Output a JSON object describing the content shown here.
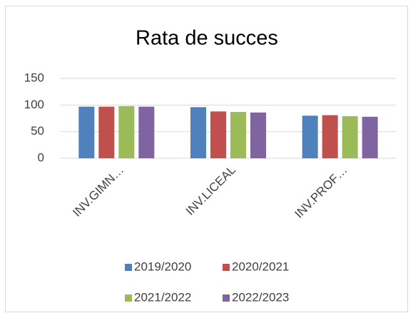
{
  "chart_data": {
    "type": "bar",
    "title": "Rata de succes",
    "categories": [
      "INV.GIMN…",
      "INV.LICEAL",
      "INV.PROF…"
    ],
    "series": [
      {
        "name": "2019/2020",
        "color": "#4f81bd",
        "values": [
          97,
          96,
          80
        ]
      },
      {
        "name": "2020/2021",
        "color": "#c0504d",
        "values": [
          97,
          88,
          81
        ]
      },
      {
        "name": "2021/2022",
        "color": "#9bbb59",
        "values": [
          98,
          87,
          79
        ]
      },
      {
        "name": "2022/2023",
        "color": "#8064a2",
        "values": [
          97,
          86,
          78
        ]
      }
    ],
    "ylim": [
      0,
      150
    ],
    "yticks": [
      0,
      50,
      100,
      150
    ],
    "grid": true,
    "legend": "bottom"
  }
}
